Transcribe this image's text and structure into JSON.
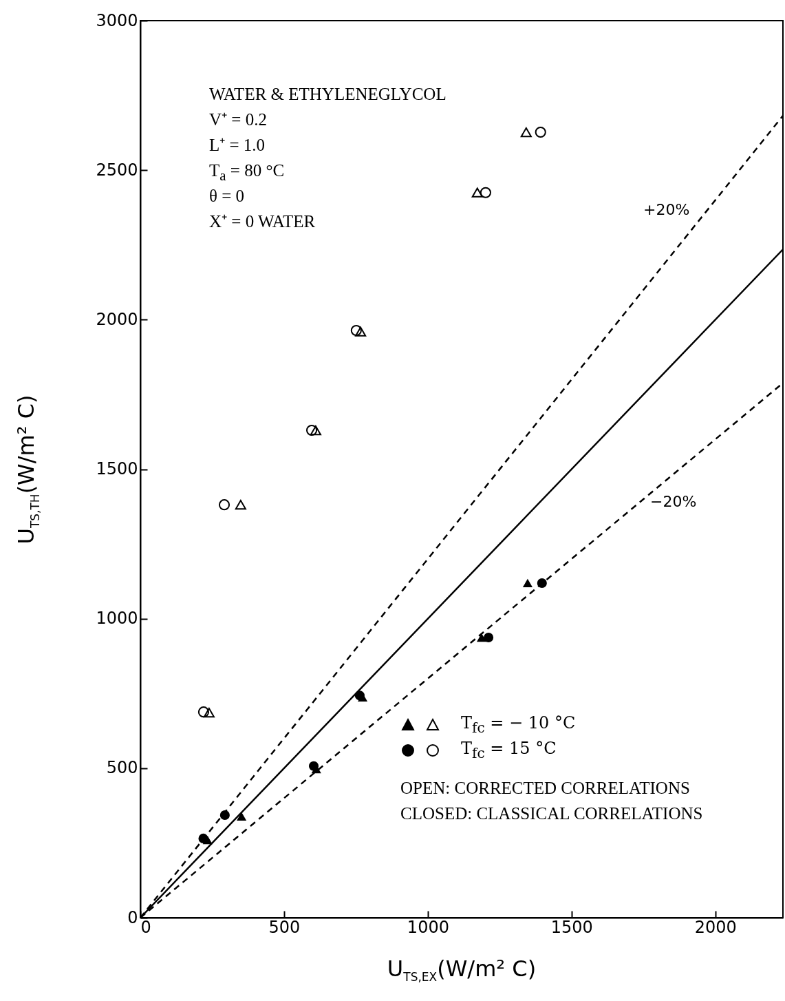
{
  "chart_data": {
    "type": "scatter",
    "xlabel": "U$_{TS,EX}$(W/m² C)",
    "ylabel": "U$_{TS,TH}$(W/m² C)",
    "xlim": [
      0,
      2235
    ],
    "ylim": [
      0,
      3000
    ],
    "xticks": [
      0,
      500,
      1000,
      1500,
      2000
    ],
    "yticks": [
      0,
      500,
      1000,
      1500,
      2000,
      2500,
      3000
    ],
    "grid": false,
    "legend": "bottom right",
    "series": [
      {
        "name": "T$_{fc}$ = − 10 °C",
        "marker": "triangle",
        "color": "#000000",
        "x": [
          239,
          349,
          610,
          766,
          1172,
          1342
        ],
        "values": [
          686,
          1381,
          1630,
          1960,
          2425,
          2627
        ]
      },
      {
        "name": "T$_{fc}$ = 15 °C",
        "marker": "circle",
        "color": "#000000",
        "x": [
          220,
          292,
          596,
          751,
          1201,
          1392
        ],
        "values": [
          688,
          1381,
          1630,
          1964,
          2425,
          2627
        ]
      },
      {
        "marker": "triangle",
        "color": "#000000",
        "x": [
          234,
          352,
          612,
          773,
          1187,
          1347
        ],
        "values": [
          260,
          339,
          497,
          737,
          937,
          1119
        ]
      },
      {
        "marker": "circle",
        "color": "#000000",
        "x": [
          219,
          294,
          603,
          763,
          1211,
          1397
        ],
        "values": [
          265,
          343,
          507,
          743,
          937,
          1119
        ]
      },
      {
        "type": "line",
        "marker": "none",
        "line_style": "solid",
        "color": "#000000",
        "x": [
          0,
          2235
        ],
        "values": [
          0,
          2235
        ]
      },
      {
        "type": "line",
        "marker": "none",
        "line_style": "dashed",
        "color": "#000000",
        "x": [
          0,
          2235
        ],
        "values": [
          0,
          2682
        ]
      },
      {
        "type": "line",
        "marker": "none",
        "line_style": "dashed",
        "color": "#000000",
        "x": [
          0,
          2235
        ],
        "values": [
          0,
          1788
        ]
      }
    ],
    "annotations": [
      "WATER & ETHYLENEGLYCOL",
      "V⁺ = 0.2",
      "L⁺ = 1.0",
      "T$_{a}$ = 80 °C",
      "θ = 0",
      "X⁺ = 0 WATER",
      "+20%",
      "−20%",
      "OPEN: CORRECTED CORRELATIONS",
      "CLOSED: CLASSICAL CORRELATIONS"
    ]
  }
}
